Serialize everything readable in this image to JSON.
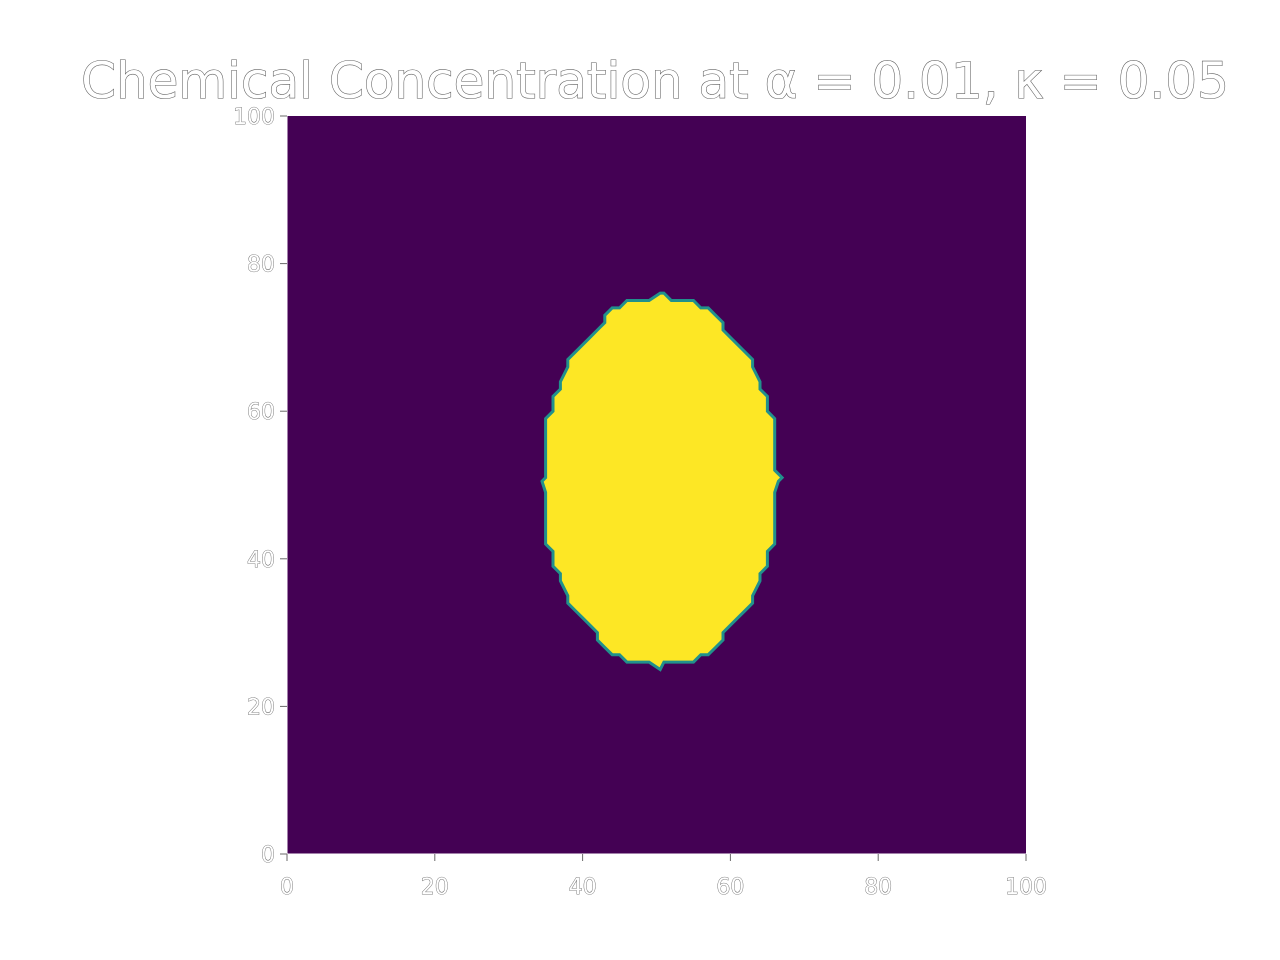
{
  "chart_data": {
    "type": "heatmap",
    "title": "Chemical Concentration at α = 0.01, κ = 0.05",
    "xlabel": "",
    "ylabel": "",
    "xlim": [
      0,
      100
    ],
    "ylim": [
      0,
      100
    ],
    "xticks": [
      0,
      20,
      40,
      60,
      80,
      100
    ],
    "yticks": [
      0,
      20,
      40,
      60,
      80,
      100
    ],
    "colormap": "viridis",
    "background_value": 0,
    "region_value": 1,
    "region": {
      "shape": "ellipse",
      "center_x": 50.5,
      "center_y": 50.5,
      "half_width": 16,
      "half_height": 25,
      "spikes": [
        [
          50.5,
          76
        ],
        [
          50.5,
          25
        ],
        [
          34.5,
          50.5
        ],
        [
          66.5,
          50.5
        ]
      ]
    },
    "colors": {
      "low": "#440154",
      "mid": "#21918c",
      "high": "#fde725"
    },
    "grid": false,
    "legend": "none"
  }
}
